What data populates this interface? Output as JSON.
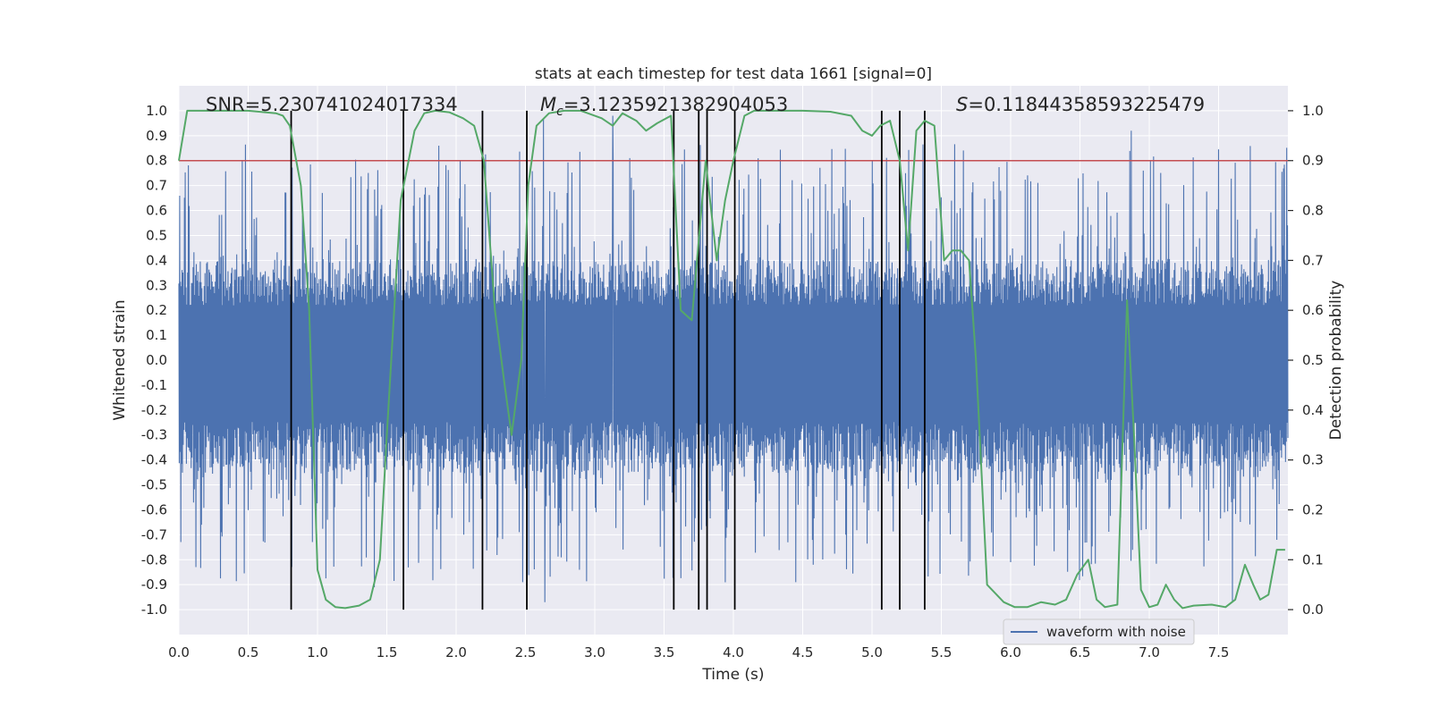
{
  "chart_data": {
    "type": "line",
    "title": "stats at each timestep for test data 1661 [signal=0]",
    "xlabel": "Time (s)",
    "ylabel_left": "Whitened strain",
    "ylabel_right": "Detection probability",
    "xlim": [
      0.0,
      8.0
    ],
    "ylim_left": [
      -1.1,
      1.1
    ],
    "ylim_right": [
      -0.05,
      1.05
    ],
    "x_ticks": [
      "0.0",
      "0.5",
      "1.0",
      "1.5",
      "2.0",
      "2.5",
      "3.0",
      "3.5",
      "4.0",
      "4.5",
      "5.0",
      "5.5",
      "6.0",
      "6.5",
      "7.0",
      "7.5"
    ],
    "x_tick_values": [
      0.0,
      0.5,
      1.0,
      1.5,
      2.0,
      2.5,
      3.0,
      3.5,
      4.0,
      4.5,
      5.0,
      5.5,
      6.0,
      6.5,
      7.0,
      7.5
    ],
    "y_left_ticks": [
      "1.0",
      "0.9",
      "0.8",
      "0.7",
      "0.6",
      "0.5",
      "0.4",
      "0.3",
      "0.2",
      "0.1",
      "0.0",
      "-0.1",
      "-0.2",
      "-0.3",
      "-0.4",
      "-0.5",
      "-0.6",
      "-0.7",
      "-0.8",
      "-0.9",
      "-1.0"
    ],
    "y_left_tick_values": [
      1.0,
      0.9,
      0.8,
      0.7,
      0.6,
      0.5,
      0.4,
      0.3,
      0.2,
      0.1,
      0.0,
      -0.1,
      -0.2,
      -0.3,
      -0.4,
      -0.5,
      -0.6,
      -0.7,
      -0.8,
      -0.9,
      -1.0
    ],
    "y_right_ticks": [
      "1.0",
      "0.9",
      "0.8",
      "0.7",
      "0.6",
      "0.5",
      "0.4",
      "0.3",
      "0.2",
      "0.1",
      "0.0"
    ],
    "y_right_tick_values": [
      1.0,
      0.9,
      0.8,
      0.7,
      0.6,
      0.5,
      0.4,
      0.3,
      0.2,
      0.1,
      0.0
    ],
    "grid": true,
    "legend_position": "bottom-right",
    "annotations": {
      "snr": "SNR=5.230741024017334",
      "mc_symbol": "M",
      "mc_subscript": "c",
      "mc_value": "=3.1235921382904053",
      "s_symbol": "S",
      "s_value": "=0.11844358593225479"
    },
    "threshold": {
      "value": 0.9,
      "axis": "right",
      "color": "#c44e52"
    },
    "vlines_x": [
      0.81,
      1.62,
      2.19,
      2.51,
      3.57,
      3.75,
      3.81,
      4.01,
      5.07,
      5.2,
      5.38
    ],
    "vline_range_right": [
      0.0,
      1.0
    ],
    "series": [
      {
        "name": "waveform with noise",
        "axis": "left",
        "color": "#4c72b0",
        "duration": 8.0,
        "envelope": {
          "upper_core": 0.4,
          "lower_core": -0.45,
          "upper_peak_max": 0.92,
          "lower_peak_min": -0.97
        },
        "notable_spikes": [
          {
            "x": 2.63,
            "y": 0.97
          },
          {
            "x": 2.64,
            "y": -0.97
          },
          {
            "x": 6.87,
            "y": 0.92
          },
          {
            "x": 1.41,
            "y": -0.91
          },
          {
            "x": 3.13,
            "y": 0.98
          },
          {
            "x": 4.45,
            "y": -0.89
          },
          {
            "x": 6.0,
            "y": -0.81
          },
          {
            "x": 2.48,
            "y": -0.89
          },
          {
            "x": 7.6,
            "y": -0.97
          },
          {
            "x": 7.92,
            "y": -0.72
          }
        ]
      },
      {
        "axis": "right",
        "color": "#55a868",
        "x": [
          0.0,
          0.06,
          0.3,
          0.5,
          0.7,
          0.75,
          0.8,
          0.88,
          0.94,
          1.0,
          1.06,
          1.13,
          1.2,
          1.3,
          1.38,
          1.45,
          1.5,
          1.6,
          1.7,
          1.77,
          1.85,
          1.95,
          2.05,
          2.13,
          2.2,
          2.28,
          2.35,
          2.4,
          2.47,
          2.52,
          2.58,
          2.67,
          2.78,
          2.9,
          3.05,
          3.13,
          3.2,
          3.3,
          3.37,
          3.45,
          3.55,
          3.62,
          3.7,
          3.8,
          3.88,
          3.94,
          4.0,
          4.08,
          4.15,
          4.3,
          4.5,
          4.7,
          4.85,
          4.93,
          5.0,
          5.06,
          5.13,
          5.2,
          5.26,
          5.32,
          5.38,
          5.45,
          5.52,
          5.58,
          5.64,
          5.7,
          5.75,
          5.83,
          5.95,
          6.03,
          6.12,
          6.22,
          6.32,
          6.4,
          6.48,
          6.56,
          6.62,
          6.68,
          6.77,
          6.84,
          6.89,
          6.94,
          7.0,
          7.06,
          7.12,
          7.18,
          7.24,
          7.32,
          7.45,
          7.55,
          7.62,
          7.69,
          7.75,
          7.8,
          7.86,
          7.92,
          7.98
        ],
        "y": [
          0.9,
          1.0,
          1.0,
          1.0,
          0.995,
          0.99,
          0.97,
          0.85,
          0.6,
          0.08,
          0.02,
          0.005,
          0.003,
          0.008,
          0.02,
          0.1,
          0.35,
          0.82,
          0.96,
          0.995,
          1.0,
          0.997,
          0.985,
          0.97,
          0.9,
          0.6,
          0.45,
          0.35,
          0.5,
          0.85,
          0.97,
          0.995,
          1.0,
          1.0,
          0.985,
          0.97,
          0.995,
          0.98,
          0.96,
          0.975,
          0.99,
          0.6,
          0.58,
          0.9,
          0.7,
          0.82,
          0.9,
          0.99,
          1.0,
          1.0,
          1.0,
          0.998,
          0.99,
          0.96,
          0.95,
          0.97,
          0.98,
          0.9,
          0.72,
          0.96,
          0.98,
          0.97,
          0.7,
          0.72,
          0.72,
          0.7,
          0.5,
          0.05,
          0.015,
          0.005,
          0.005,
          0.015,
          0.01,
          0.02,
          0.07,
          0.1,
          0.02,
          0.005,
          0.01,
          0.62,
          0.35,
          0.04,
          0.005,
          0.01,
          0.05,
          0.02,
          0.003,
          0.008,
          0.01,
          0.005,
          0.02,
          0.09,
          0.05,
          0.02,
          0.03,
          0.12,
          0.12
        ]
      }
    ]
  }
}
